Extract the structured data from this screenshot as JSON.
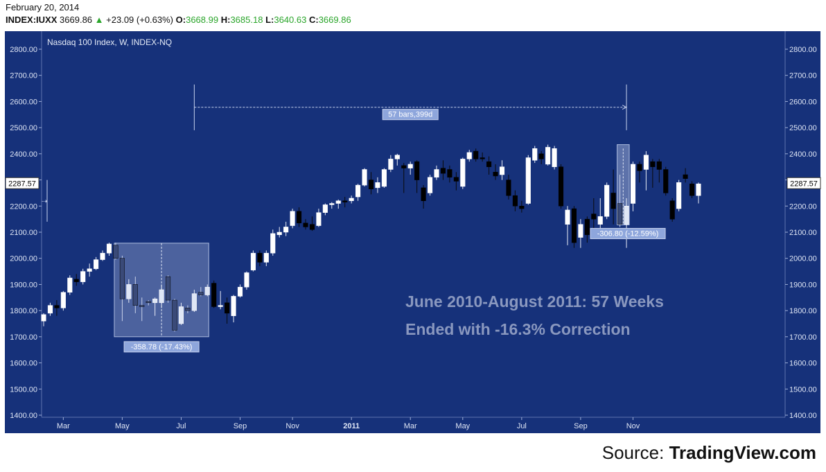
{
  "header": {
    "date": "February 20, 2014",
    "symbol": "INDEX:IUXX",
    "last": "3669.86",
    "change": "+23.09 (+0.63%)",
    "o_label": "O:",
    "o_value": "3668.99",
    "h_label": "H:",
    "h_value": "3685.18",
    "l_label": "L:",
    "l_value": "3640.63",
    "c_label": "C:",
    "c_value": "3669.86"
  },
  "source": {
    "prefix": "Source:",
    "brand": "TradingView.com"
  },
  "colors": {
    "background": "#16317a",
    "up": "#ffffff",
    "down": "#000000",
    "quote_up": "#2aa52a",
    "annotation": "#8d9fc9"
  },
  "chart_data": {
    "type": "candlestick",
    "title": "Nasdaq 100 Index, W, INDEX-NQ",
    "ylim": [
      1390,
      2860
    ],
    "y_ticks": [
      1400,
      1500,
      1600,
      1700,
      1800,
      1900,
      2000,
      2100,
      2200,
      2300,
      2400,
      2500,
      2600,
      2700,
      2800
    ],
    "y_tick_labels": [
      "1400.00",
      "1500.00",
      "1600.00",
      "1700.00",
      "1800.00",
      "1900.00",
      "2000.00",
      "2100.00",
      "2200.00",
      "2300.00",
      "2400.00",
      "2500.00",
      "2600.00",
      "2700.00",
      "2800.00"
    ],
    "x_ticks": [
      {
        "bar": 3,
        "label": "Mar"
      },
      {
        "bar": 12,
        "label": "May"
      },
      {
        "bar": 21,
        "label": "Jul"
      },
      {
        "bar": 30,
        "label": "Sep"
      },
      {
        "bar": 38,
        "label": "Nov"
      },
      {
        "bar": 47,
        "label": "2011"
      },
      {
        "bar": 56,
        "label": "Mar"
      },
      {
        "bar": 64,
        "label": "May"
      },
      {
        "bar": 73,
        "label": "Jul"
      },
      {
        "bar": 82,
        "label": "Sep"
      },
      {
        "bar": 90,
        "label": "Nov"
      }
    ],
    "bars": [
      {
        "o": 1760,
        "h": 1790,
        "l": 1740,
        "c": 1785
      },
      {
        "o": 1790,
        "h": 1830,
        "l": 1780,
        "c": 1820
      },
      {
        "o": 1820,
        "h": 1840,
        "l": 1780,
        "c": 1810
      },
      {
        "o": 1810,
        "h": 1875,
        "l": 1800,
        "c": 1870
      },
      {
        "o": 1870,
        "h": 1935,
        "l": 1860,
        "c": 1925
      },
      {
        "o": 1920,
        "h": 1940,
        "l": 1895,
        "c": 1910
      },
      {
        "o": 1910,
        "h": 1960,
        "l": 1900,
        "c": 1950
      },
      {
        "o": 1950,
        "h": 1980,
        "l": 1930,
        "c": 1960
      },
      {
        "o": 1960,
        "h": 2005,
        "l": 1955,
        "c": 1995
      },
      {
        "o": 1995,
        "h": 2030,
        "l": 1990,
        "c": 2020
      },
      {
        "o": 2020,
        "h": 2060,
        "l": 2010,
        "c": 2055
      },
      {
        "o": 2050,
        "h": 2060,
        "l": 1995,
        "c": 2000
      },
      {
        "o": 2000,
        "h": 2010,
        "l": 1760,
        "c": 1845
      },
      {
        "o": 1845,
        "h": 1920,
        "l": 1830,
        "c": 1900
      },
      {
        "o": 1900,
        "h": 1930,
        "l": 1790,
        "c": 1820
      },
      {
        "o": 1820,
        "h": 1850,
        "l": 1760,
        "c": 1815
      },
      {
        "o": 1835,
        "h": 1840,
        "l": 1820,
        "c": 1830
      },
      {
        "o": 1830,
        "h": 1850,
        "l": 1780,
        "c": 1845
      },
      {
        "o": 1830,
        "h": 1900,
        "l": 1810,
        "c": 1880
      },
      {
        "o": 1930,
        "h": 1935,
        "l": 1830,
        "c": 1840
      },
      {
        "o": 1840,
        "h": 1845,
        "l": 1720,
        "c": 1725
      },
      {
        "o": 1750,
        "h": 1830,
        "l": 1745,
        "c": 1815
      },
      {
        "o": 1810,
        "h": 1820,
        "l": 1790,
        "c": 1800
      },
      {
        "o": 1800,
        "h": 1880,
        "l": 1795,
        "c": 1865
      },
      {
        "o": 1870,
        "h": 1890,
        "l": 1855,
        "c": 1860
      },
      {
        "o": 1860,
        "h": 1900,
        "l": 1855,
        "c": 1890
      },
      {
        "o": 1905,
        "h": 1915,
        "l": 1810,
        "c": 1815
      },
      {
        "o": 1815,
        "h": 1875,
        "l": 1805,
        "c": 1820
      },
      {
        "o": 1830,
        "h": 1850,
        "l": 1750,
        "c": 1790
      },
      {
        "o": 1780,
        "h": 1860,
        "l": 1755,
        "c": 1855
      },
      {
        "o": 1855,
        "h": 1900,
        "l": 1850,
        "c": 1890
      },
      {
        "o": 1890,
        "h": 1950,
        "l": 1880,
        "c": 1945
      },
      {
        "o": 1955,
        "h": 2030,
        "l": 1950,
        "c": 2020
      },
      {
        "o": 2020,
        "h": 2030,
        "l": 1970,
        "c": 1985
      },
      {
        "o": 1985,
        "h": 2030,
        "l": 1970,
        "c": 2020
      },
      {
        "o": 2020,
        "h": 2110,
        "l": 2010,
        "c": 2095
      },
      {
        "o": 2090,
        "h": 2120,
        "l": 2080,
        "c": 2100
      },
      {
        "o": 2100,
        "h": 2140,
        "l": 2085,
        "c": 2120
      },
      {
        "o": 2125,
        "h": 2190,
        "l": 2115,
        "c": 2180
      },
      {
        "o": 2180,
        "h": 2195,
        "l": 2120,
        "c": 2135
      },
      {
        "o": 2135,
        "h": 2150,
        "l": 2110,
        "c": 2120
      },
      {
        "o": 2130,
        "h": 2160,
        "l": 2105,
        "c": 2110
      },
      {
        "o": 2125,
        "h": 2190,
        "l": 2120,
        "c": 2175
      },
      {
        "o": 2175,
        "h": 2210,
        "l": 2165,
        "c": 2205
      },
      {
        "o": 2205,
        "h": 2215,
        "l": 2190,
        "c": 2210
      },
      {
        "o": 2210,
        "h": 2225,
        "l": 2190,
        "c": 2220
      },
      {
        "o": 2220,
        "h": 2235,
        "l": 2195,
        "c": 2215
      },
      {
        "o": 2220,
        "h": 2240,
        "l": 2210,
        "c": 2230
      },
      {
        "o": 2235,
        "h": 2285,
        "l": 2220,
        "c": 2280
      },
      {
        "o": 2280,
        "h": 2345,
        "l": 2275,
        "c": 2340
      },
      {
        "o": 2300,
        "h": 2330,
        "l": 2245,
        "c": 2265
      },
      {
        "o": 2270,
        "h": 2310,
        "l": 2250,
        "c": 2290
      },
      {
        "o": 2275,
        "h": 2345,
        "l": 2270,
        "c": 2340
      },
      {
        "o": 2340,
        "h": 2395,
        "l": 2330,
        "c": 2380
      },
      {
        "o": 2380,
        "h": 2400,
        "l": 2355,
        "c": 2395
      },
      {
        "o": 2355,
        "h": 2365,
        "l": 2250,
        "c": 2345
      },
      {
        "o": 2345,
        "h": 2370,
        "l": 2320,
        "c": 2360
      },
      {
        "o": 2370,
        "h": 2375,
        "l": 2250,
        "c": 2300
      },
      {
        "o": 2270,
        "h": 2280,
        "l": 2190,
        "c": 2220
      },
      {
        "o": 2250,
        "h": 2320,
        "l": 2240,
        "c": 2310
      },
      {
        "o": 2310,
        "h": 2355,
        "l": 2300,
        "c": 2340
      },
      {
        "o": 2345,
        "h": 2375,
        "l": 2300,
        "c": 2325
      },
      {
        "o": 2340,
        "h": 2355,
        "l": 2290,
        "c": 2310
      },
      {
        "o": 2310,
        "h": 2330,
        "l": 2260,
        "c": 2295
      },
      {
        "o": 2275,
        "h": 2385,
        "l": 2265,
        "c": 2380
      },
      {
        "o": 2380,
        "h": 2415,
        "l": 2370,
        "c": 2405
      },
      {
        "o": 2410,
        "h": 2420,
        "l": 2370,
        "c": 2380
      },
      {
        "o": 2385,
        "h": 2405,
        "l": 2370,
        "c": 2380
      },
      {
        "o": 2370,
        "h": 2390,
        "l": 2320,
        "c": 2350
      },
      {
        "o": 2330,
        "h": 2360,
        "l": 2300,
        "c": 2315
      },
      {
        "o": 2320,
        "h": 2375,
        "l": 2300,
        "c": 2350
      },
      {
        "o": 2300,
        "h": 2320,
        "l": 2225,
        "c": 2240
      },
      {
        "o": 2240,
        "h": 2260,
        "l": 2180,
        "c": 2200
      },
      {
        "o": 2200,
        "h": 2220,
        "l": 2175,
        "c": 2190
      },
      {
        "o": 2210,
        "h": 2395,
        "l": 2205,
        "c": 2385
      },
      {
        "o": 2375,
        "h": 2430,
        "l": 2365,
        "c": 2420
      },
      {
        "o": 2400,
        "h": 2410,
        "l": 2360,
        "c": 2380
      },
      {
        "o": 2360,
        "h": 2435,
        "l": 2355,
        "c": 2425
      },
      {
        "o": 2350,
        "h": 2430,
        "l": 2340,
        "c": 2420
      },
      {
        "o": 2350,
        "h": 2360,
        "l": 2190,
        "c": 2200
      },
      {
        "o": 2130,
        "h": 2200,
        "l": 2050,
        "c": 2185
      },
      {
        "o": 2190,
        "h": 2200,
        "l": 2040,
        "c": 2060
      },
      {
        "o": 2080,
        "h": 2150,
        "l": 2040,
        "c": 2130
      },
      {
        "o": 2150,
        "h": 2160,
        "l": 2060,
        "c": 2090
      },
      {
        "o": 2170,
        "h": 2230,
        "l": 2100,
        "c": 2150
      },
      {
        "o": 2130,
        "h": 2230,
        "l": 2080,
        "c": 2160
      },
      {
        "o": 2160,
        "h": 2290,
        "l": 2150,
        "c": 2280
      },
      {
        "o": 2250,
        "h": 2340,
        "l": 2130,
        "c": 2190
      },
      {
        "o": 2210,
        "h": 2320,
        "l": 2120,
        "c": 2130
      },
      {
        "o": 2130,
        "h": 2230,
        "l": 2040,
        "c": 2200
      },
      {
        "o": 2210,
        "h": 2370,
        "l": 2180,
        "c": 2360
      },
      {
        "o": 2360,
        "h": 2370,
        "l": 2290,
        "c": 2335
      },
      {
        "o": 2340,
        "h": 2410,
        "l": 2260,
        "c": 2395
      },
      {
        "o": 2370,
        "h": 2380,
        "l": 2270,
        "c": 2350
      },
      {
        "o": 2370,
        "h": 2380,
        "l": 2290,
        "c": 2340
      },
      {
        "o": 2340,
        "h": 2350,
        "l": 2240,
        "c": 2250
      },
      {
        "o": 2220,
        "h": 2230,
        "l": 2140,
        "c": 2150
      },
      {
        "o": 2190,
        "h": 2300,
        "l": 2180,
        "c": 2290
      },
      {
        "o": 2320,
        "h": 2345,
        "l": 2290,
        "c": 2305
      },
      {
        "o": 2285,
        "h": 2295,
        "l": 2230,
        "c": 2240
      },
      {
        "o": 2240,
        "h": 2290,
        "l": 2210,
        "c": 2285
      }
    ],
    "price_marker": {
      "value": 2287.57,
      "label": "2287.57"
    },
    "annotations": {
      "range_label": "57 bars,399d",
      "drop1_label": "-358.78 (-17.43%)",
      "drop2_label": "-306.80 (-12.59%)",
      "text_line1": "June 2010-August 2011: 57 Weeks",
      "text_line2": "Ended with -16.3% Correction"
    }
  }
}
